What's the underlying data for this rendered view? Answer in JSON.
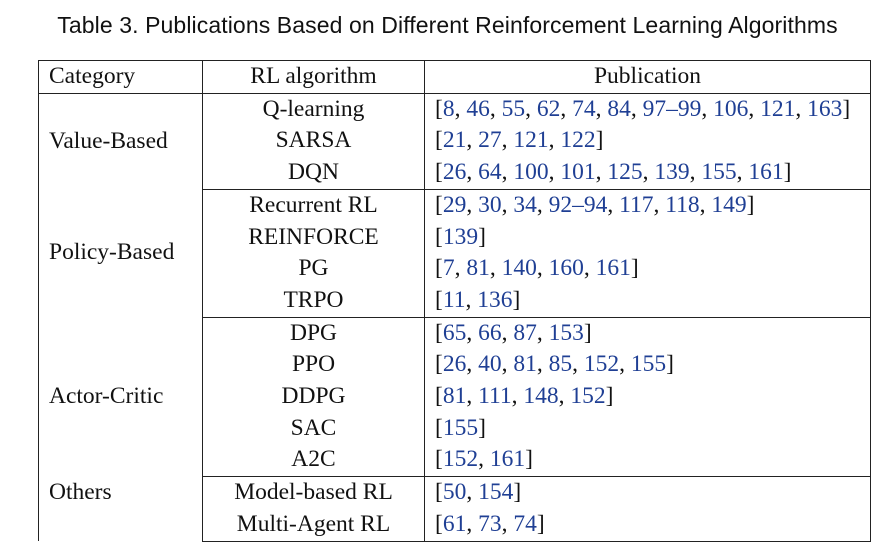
{
  "caption": "Table 3.  Publications Based on Different Reinforcement Learning Algorithms",
  "headers": {
    "category": "Category",
    "algorithm": "RL algorithm",
    "publication": "Publication"
  },
  "groups": [
    {
      "category": "Value-Based",
      "rows": [
        {
          "algorithm": "Q-learning",
          "refs": [
            "8",
            "46",
            "55",
            "62",
            "74",
            "84",
            "97–99",
            "106",
            "121",
            "163"
          ]
        },
        {
          "algorithm": "SARSA",
          "refs": [
            "21",
            "27",
            "121",
            "122"
          ]
        },
        {
          "algorithm": "DQN",
          "refs": [
            "26",
            "64",
            "100",
            "101",
            "125",
            "139",
            "155",
            "161"
          ]
        }
      ]
    },
    {
      "category": "Policy-Based",
      "rows": [
        {
          "algorithm": "Recurrent RL",
          "refs": [
            "29",
            "30",
            "34",
            "92–94",
            "117",
            "118",
            "149"
          ]
        },
        {
          "algorithm": "REINFORCE",
          "refs": [
            "139"
          ]
        },
        {
          "algorithm": "PG",
          "refs": [
            "7",
            "81",
            "140",
            "160",
            "161"
          ]
        },
        {
          "algorithm": "TRPO",
          "refs": [
            "11",
            "136"
          ]
        }
      ]
    },
    {
      "category": "Actor-Critic",
      "rows": [
        {
          "algorithm": "DPG",
          "refs": [
            "65",
            "66",
            "87",
            "153"
          ]
        },
        {
          "algorithm": "PPO",
          "refs": [
            "26",
            "40",
            "81",
            "85",
            "152",
            "155"
          ]
        },
        {
          "algorithm": "DDPG",
          "refs": [
            "81",
            "111",
            "148",
            "152"
          ]
        },
        {
          "algorithm": "SAC",
          "refs": [
            "155"
          ]
        },
        {
          "algorithm": "A2C",
          "refs": [
            "152",
            "161"
          ]
        }
      ]
    },
    {
      "category": "Others",
      "rows": [
        {
          "algorithm": "Model-based RL",
          "refs": [
            "50",
            "154"
          ]
        },
        {
          "algorithm": "Multi-Agent RL",
          "refs": [
            "61",
            "73",
            "74"
          ]
        }
      ]
    }
  ],
  "colors": {
    "link": "#1f3f94",
    "text": "#111111"
  }
}
